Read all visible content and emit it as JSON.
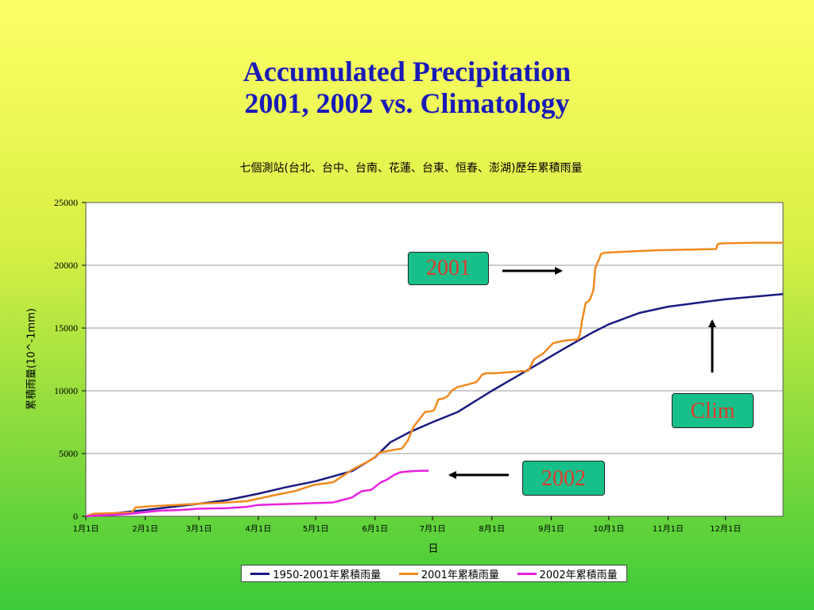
{
  "title_line1": "Accumulated Precipitation",
  "title_line2": "2001, 2002 vs. Climatology",
  "colors": {
    "clim": "#1a1a80",
    "y2001": "#f08a1e",
    "y2002": "#e820e0",
    "callout_bg": "#17c08a",
    "callout_text": "#e03b2c"
  },
  "callouts": {
    "c2001": "2001",
    "c2002": "2002",
    "clim": "Clim"
  },
  "chart_data": {
    "type": "line",
    "title": "七個測站(台北、台中、台南、花蓮、台東、恒春、澎湖)歷年累積雨量",
    "xlabel": "日",
    "ylabel": "累積雨量(10^-1mm)",
    "ylim": [
      0,
      25000
    ],
    "yticks": [
      0,
      5000,
      10000,
      15000,
      20000,
      25000
    ],
    "xlim": [
      1,
      365
    ],
    "xticks": [
      {
        "day": 1,
        "label": "1月1日"
      },
      {
        "day": 32,
        "label": "2月1日"
      },
      {
        "day": 60,
        "label": "3月1日"
      },
      {
        "day": 91,
        "label": "4月1日"
      },
      {
        "day": 121,
        "label": "5月1日"
      },
      {
        "day": 152,
        "label": "6月1日"
      },
      {
        "day": 182,
        "label": "7月1日"
      },
      {
        "day": 213,
        "label": "8月1日"
      },
      {
        "day": 244,
        "label": "9月1日"
      },
      {
        "day": 274,
        "label": "10月1日"
      },
      {
        "day": 305,
        "label": "11月1日"
      },
      {
        "day": 335,
        "label": "12月1日"
      }
    ],
    "grid": true,
    "legend_position": "bottom",
    "series": [
      {
        "name": "1950-2001年累積雨量",
        "color": "#1a1a80",
        "x": [
          1,
          32,
          60,
          75,
          91,
          105,
          121,
          140,
          152,
          160,
          170,
          182,
          195,
          213,
          230,
          250,
          265,
          274,
          290,
          305,
          320,
          335,
          350,
          365
        ],
        "y": [
          0,
          500,
          1000,
          1300,
          1800,
          2300,
          2800,
          3600,
          4700,
          5900,
          6700,
          7500,
          8300,
          10000,
          11500,
          13300,
          14600,
          15300,
          16200,
          16700,
          17000,
          17300,
          17500,
          17700
        ]
      },
      {
        "name": "2001年累積雨量",
        "color": "#f08a1e",
        "x": [
          1,
          5,
          25,
          27,
          35,
          60,
          75,
          85,
          91,
          100,
          110,
          120,
          125,
          130,
          135,
          140,
          145,
          150,
          155,
          162,
          166,
          169,
          172,
          178,
          182,
          183,
          185,
          188,
          190,
          192,
          195,
          198,
          205,
          208,
          210,
          215,
          232,
          235,
          240,
          245,
          251,
          258,
          259,
          260,
          262,
          264,
          266,
          267,
          269,
          270,
          272,
          285,
          300,
          330,
          331,
          333,
          350,
          365
        ],
        "y": [
          0,
          200,
          300,
          700,
          800,
          1000,
          1100,
          1200,
          1400,
          1700,
          2000,
          2500,
          2600,
          2700,
          3200,
          3700,
          4100,
          4500,
          5100,
          5300,
          5400,
          6000,
          7100,
          8300,
          8400,
          8500,
          9300,
          9400,
          9600,
          10000,
          10300,
          10400,
          10700,
          11300,
          11400,
          11400,
          11600,
          12500,
          13000,
          13800,
          14000,
          14100,
          14500,
          15500,
          17000,
          17200,
          18000,
          19800,
          20500,
          20900,
          21000,
          21100,
          21200,
          21300,
          21700,
          21750,
          21800,
          21800
        ]
      },
      {
        "name": "2002年累積雨量",
        "color": "#e820e0",
        "x": [
          1,
          20,
          25,
          30,
          40,
          50,
          60,
          75,
          85,
          91,
          100,
          110,
          130,
          135,
          140,
          142,
          145,
          150,
          155,
          158,
          160,
          162,
          165,
          168,
          172,
          176,
          180
        ],
        "y": [
          0,
          150,
          200,
          300,
          450,
          500,
          600,
          650,
          750,
          900,
          950,
          1000,
          1100,
          1300,
          1500,
          1700,
          2000,
          2100,
          2700,
          2900,
          3100,
          3300,
          3500,
          3550,
          3600,
          3620,
          3630
        ]
      }
    ]
  }
}
